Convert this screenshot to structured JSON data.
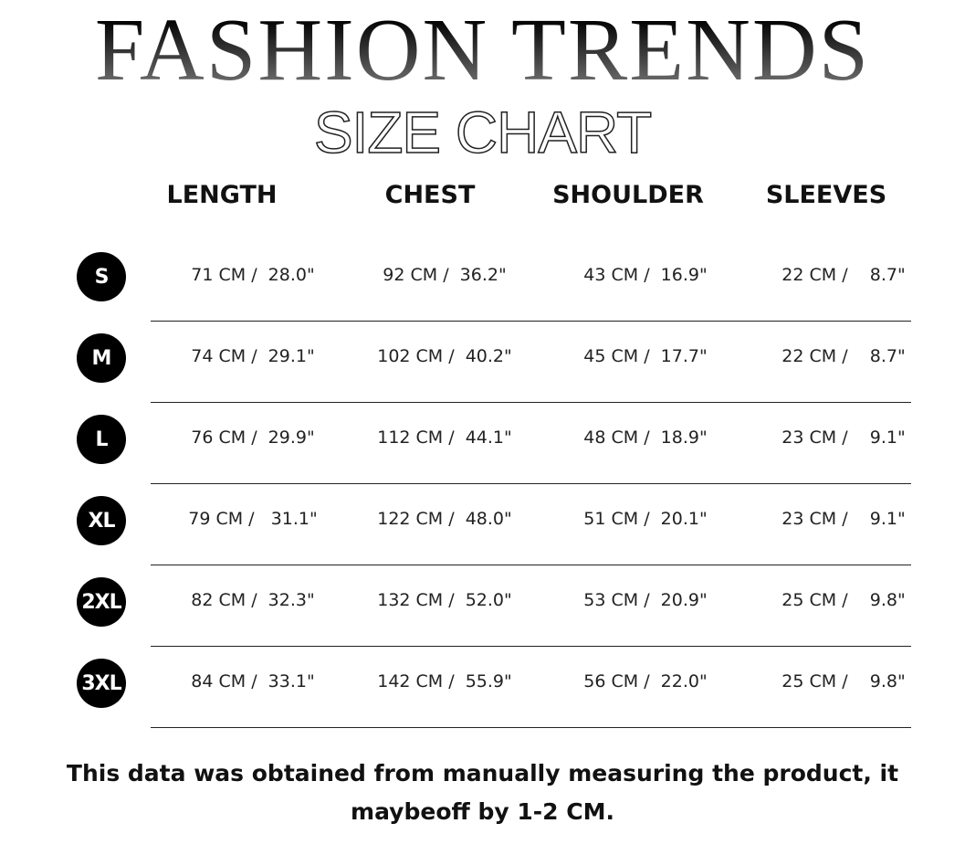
{
  "title": "FASHION TRENDS",
  "subtitle": "SIZE CHART",
  "headers": [
    "LENGTH",
    "CHEST",
    "SHOULDER",
    "SLEEVES"
  ],
  "rows": [
    {
      "size": "S",
      "values": [
        "71 CM /  28.0\"",
        "92 CM /  36.2\"",
        "43 CM /  16.9\"",
        "22 CM /    8.7\""
      ]
    },
    {
      "size": "M",
      "values": [
        "74 CM /  29.1\"",
        "102 CM /  40.2\"",
        "45 CM /  17.7\"",
        "22 CM /    8.7\""
      ]
    },
    {
      "size": "L",
      "values": [
        "76 CM /  29.9\"",
        "112 CM /  44.1\"",
        "48 CM /  18.9\"",
        "23 CM /    9.1\""
      ]
    },
    {
      "size": "XL",
      "values": [
        "79 CM /   31.1\"",
        "122 CM /  48.0\"",
        "51 CM /  20.1\"",
        "23 CM /    9.1\""
      ]
    },
    {
      "size": "2XL",
      "values": [
        "82 CM /  32.3\"",
        "132 CM /  52.0\"",
        "53 CM /  20.9\"",
        "25 CM /    9.8\""
      ]
    },
    {
      "size": "3XL",
      "values": [
        "84 CM /  33.1\"",
        "142 CM /  55.9\"",
        "56 CM /  22.0\"",
        "25 CM /    9.8\""
      ]
    }
  ],
  "note": "This data was obtained from manually measuring the product, it maybeoff by 1-2 CM."
}
